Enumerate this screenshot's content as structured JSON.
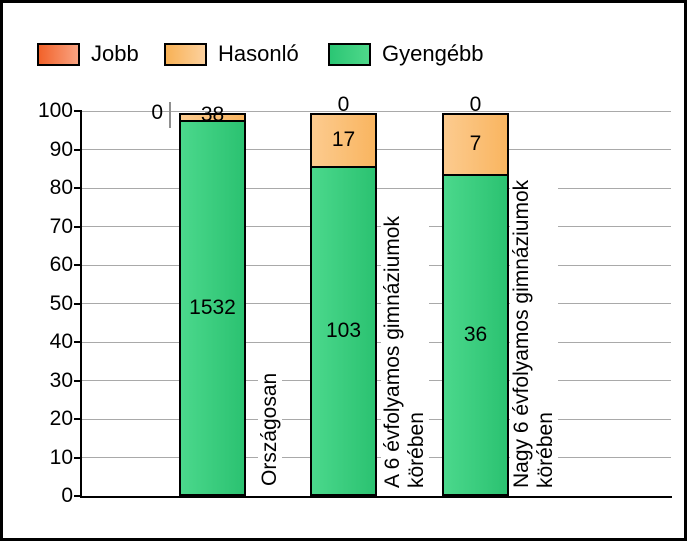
{
  "legend": {
    "items": [
      {
        "label": "Jobb"
      },
      {
        "label": "Hasonló"
      },
      {
        "label": "Gyengébb"
      }
    ]
  },
  "y_axis": {
    "min": 0,
    "max": 100,
    "step": 10,
    "tick_labels": [
      "0",
      "10",
      "20",
      "30",
      "40",
      "50",
      "60",
      "70",
      "80",
      "90",
      "100"
    ]
  },
  "chart_data": {
    "type": "bar",
    "stacking": "percent",
    "title": "",
    "categories": [
      "Országosan",
      "A 6 évfolyamos gimnáziumok körében",
      "Nagy 6 évfolyamos gimnáziumok körében"
    ],
    "category_label_lines": [
      [
        "Országosan"
      ],
      [
        "A 6 évfolyamos gimnáziumok",
        "körében"
      ],
      [
        "Nagy 6 évfolyamos gimnáziumok",
        "körében"
      ]
    ],
    "series": [
      {
        "name": "Jobb",
        "values": [
          0,
          0,
          0
        ]
      },
      {
        "name": "Hasonló",
        "values": [
          38,
          17,
          7
        ]
      },
      {
        "name": "Gyengébb",
        "values": [
          1532,
          103,
          36
        ]
      }
    ],
    "ylim": [
      0,
      100
    ],
    "grid": true,
    "legend_position": "top"
  },
  "colors": {
    "jobb_gradient": [
      "#F2622A",
      "#F9A381"
    ],
    "hasonlo_gradient": [
      "#F8B155",
      "#FCD19E"
    ],
    "gyengebb_gradient": [
      "#2BC674",
      "#4ED88A"
    ],
    "bar_hasonlo_gradient": [
      "#FCCB8F",
      "#F9B560"
    ],
    "bar_gyengebb_gradient": [
      "#4BD88C",
      "#2BC271"
    ],
    "gridline": "#A9A9A9",
    "axis": "#000000",
    "leader_line": "#8F8F8F",
    "background": "#FFFFFF"
  }
}
